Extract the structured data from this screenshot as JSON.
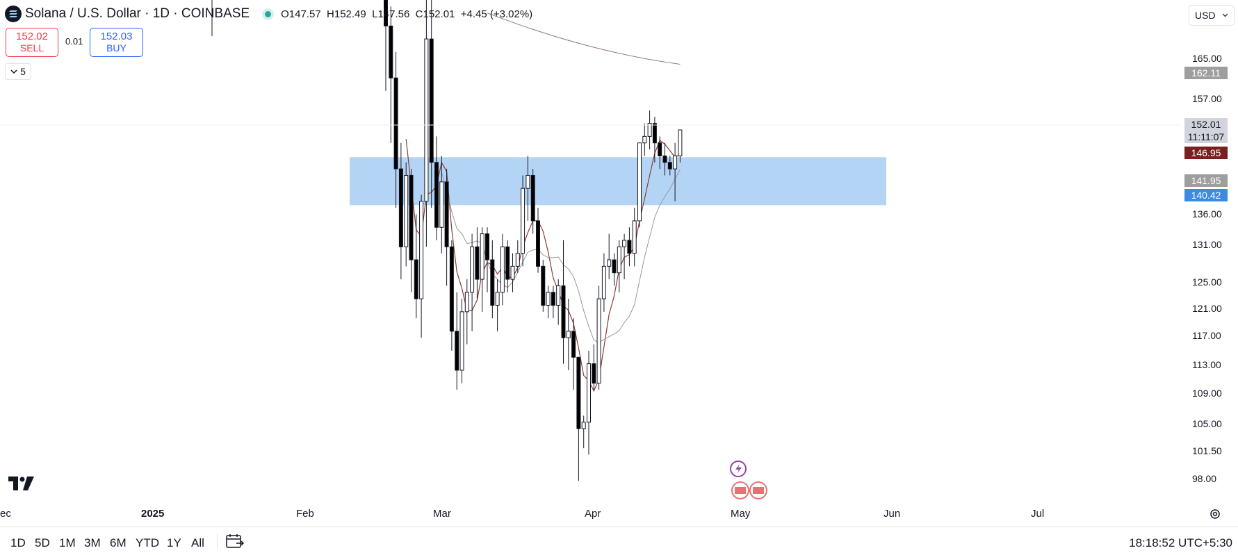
{
  "header": {
    "symbol_title": "Solana / U.S. Dollar · 1D · COINBASE",
    "o_label": "O",
    "o_value": "147.57",
    "h_label": "H",
    "h_value": "152.49",
    "l_label": "L",
    "l_value": "147.56",
    "c_label": "C",
    "c_value": "152.01",
    "change": "+4.45 (+3.02%)"
  },
  "trade": {
    "sell_price": "152.02",
    "sell_label": "SELL",
    "spread": "0.01",
    "buy_price": "152.03",
    "buy_label": "BUY"
  },
  "indicators_count": "5",
  "currency": "USD",
  "price_axis": {
    "labels": [
      "165.00",
      "157.00",
      "136.00",
      "131.00",
      "125.00",
      "121.00",
      "117.00",
      "113.00",
      "109.00",
      "105.00",
      "101.50",
      "98.00"
    ],
    "tags": {
      "ma_long": "162.11",
      "last_price": "152.01",
      "countdown": "11:11:07",
      "ma_short": "146.95",
      "ma_mid": "141.95",
      "zone_low": "140.42"
    }
  },
  "time_axis": [
    "ec",
    "2025",
    "Feb",
    "Mar",
    "Apr",
    "May",
    "Jun",
    "Jul"
  ],
  "timeframes": [
    "1D",
    "5D",
    "1M",
    "3M",
    "6M",
    "YTD",
    "1Y",
    "All"
  ],
  "clock": "18:18:52 UTC+5:30",
  "colors": {
    "up": "#ffffff",
    "down": "#000000",
    "wick": "#131722",
    "zone": "#b3d4f5",
    "ma_short": "#8b3a3a",
    "ma_mid": "#999999",
    "ma_long": "#8a7a7a",
    "last_tag": "#d1d4dc",
    "ma_short_tag": "#7a1f1f",
    "ma_mid_tag": "#9e9e9e",
    "ma_long_tag": "#9e9e9e",
    "zone_tag": "#3d8be0"
  },
  "icons": [
    "solana-icon",
    "tradingview-logo-icon",
    "chevron-down-icon",
    "economic-events-icon",
    "go-to-date-icon",
    "settings-icon"
  ],
  "chart_data": {
    "type": "candlestick",
    "ylim": [
      95,
      172
    ],
    "zone": {
      "low": 140.42,
      "high": 147.8
    },
    "candles": [
      [
        172,
        180,
        158,
        168
      ],
      [
        168,
        171,
        150,
        160
      ],
      [
        160,
        164,
        140,
        146
      ],
      [
        146,
        150,
        129,
        134
      ],
      [
        134,
        147,
        131,
        145
      ],
      [
        145,
        146,
        127,
        132
      ],
      [
        132,
        139,
        123,
        126
      ],
      [
        126,
        142,
        120,
        141
      ],
      [
        141,
        176,
        134,
        166
      ],
      [
        166,
        172,
        140,
        147
      ],
      [
        147,
        151,
        135,
        137
      ],
      [
        137,
        148,
        133,
        144
      ],
      [
        144,
        146,
        128,
        134
      ],
      [
        134,
        135,
        118,
        121
      ],
      [
        121,
        127,
        112,
        115
      ],
      [
        115,
        126,
        113,
        124
      ],
      [
        124,
        129,
        119,
        127
      ],
      [
        127,
        136,
        121,
        134
      ],
      [
        134,
        137,
        126,
        129
      ],
      [
        129,
        137,
        124,
        136
      ],
      [
        136,
        137,
        127,
        132
      ],
      [
        132,
        135,
        123,
        125
      ],
      [
        125,
        129,
        121,
        127
      ],
      [
        127,
        136,
        125,
        134
      ],
      [
        134,
        135,
        127,
        129
      ],
      [
        129,
        133,
        127,
        131
      ],
      [
        131,
        135,
        130,
        133
      ],
      [
        133,
        145,
        131,
        143
      ],
      [
        143,
        148,
        138,
        145
      ],
      [
        145,
        146,
        136,
        138
      ],
      [
        138,
        140,
        130,
        131
      ],
      [
        131,
        132,
        124,
        125
      ],
      [
        125,
        128,
        123,
        127
      ],
      [
        127,
        128,
        123,
        125
      ],
      [
        125,
        129,
        122,
        128
      ],
      [
        128,
        135,
        116,
        120
      ],
      [
        120,
        126,
        115,
        121
      ],
      [
        121,
        123,
        112,
        117
      ],
      [
        117,
        117,
        98,
        106
      ],
      [
        106,
        108,
        103,
        107
      ],
      [
        107,
        118,
        102,
        116
      ],
      [
        116,
        119,
        112,
        113
      ],
      [
        113,
        128,
        112,
        126
      ],
      [
        126,
        133,
        124,
        131
      ],
      [
        131,
        136,
        129,
        132
      ],
      [
        132,
        133,
        128,
        130
      ],
      [
        130,
        135,
        127,
        134
      ],
      [
        134,
        136,
        129,
        135
      ],
      [
        135,
        137,
        131,
        133
      ],
      [
        133,
        140,
        131,
        138
      ],
      [
        138,
        150,
        137,
        150
      ],
      [
        150,
        153,
        148,
        151
      ],
      [
        151,
        155,
        149,
        153
      ],
      [
        153,
        154,
        147,
        150
      ],
      [
        150,
        151,
        146,
        148
      ],
      [
        148,
        150,
        145,
        147
      ],
      [
        147,
        148,
        145,
        146
      ],
      [
        146,
        150,
        141,
        148
      ],
      [
        148,
        152,
        147,
        152
      ]
    ]
  }
}
